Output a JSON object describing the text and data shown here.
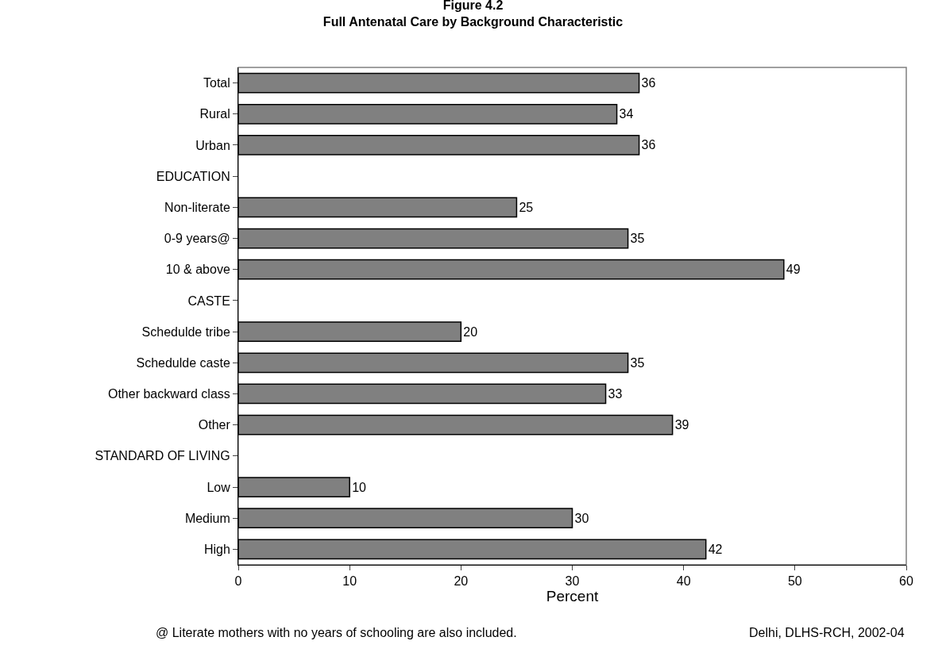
{
  "chart_data": {
    "type": "bar",
    "orientation": "horizontal",
    "title": "Figure 4.2\nFull Antenatal Care by Background Characteristic",
    "xlabel": "Percent",
    "categories": [
      "Total",
      "Rural",
      "Urban",
      "EDUCATION",
      "Non-literate",
      "0-9 years@",
      "10 & above",
      "CASTE",
      "Schedulde tribe",
      "Schedulde caste",
      "Other backward class",
      "Other",
      "STANDARD OF LIVING",
      "Low",
      "Medium",
      "High"
    ],
    "values": [
      36,
      34,
      36,
      null,
      25,
      35,
      49,
      null,
      20,
      35,
      33,
      39,
      null,
      10,
      30,
      42
    ],
    "color": "#808080",
    "data_labels": true,
    "grid": false,
    "legend": false,
    "xlim": [
      0,
      60
    ],
    "xticks": [
      0,
      10,
      20,
      30,
      40,
      50,
      60
    ],
    "annotations": [
      "@ Literate mothers with no years of schooling are also included.",
      "Delhi, DLHS-RCH, 2002-04"
    ]
  }
}
